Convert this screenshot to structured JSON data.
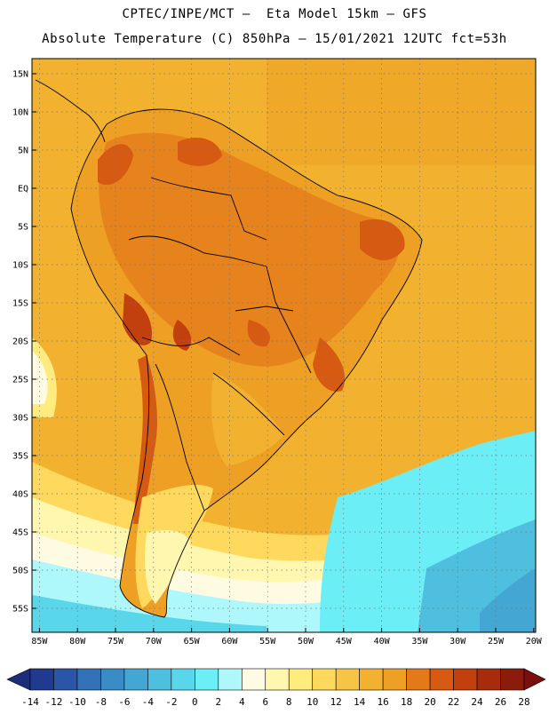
{
  "header": {
    "line1": "CPTEC/INPE/MCT –  Eta Model 15km – GFS",
    "line2": "Absolute Temperature (C) 850hPa – 15/01/2021 12UTC fct=53h"
  },
  "map": {
    "lon_range": [
      -86,
      -20
    ],
    "lat_range": [
      -57,
      17
    ],
    "lon_ticks": [
      "85W",
      "80W",
      "75W",
      "70W",
      "65W",
      "60W",
      "55W",
      "50W",
      "45W",
      "40W",
      "35W",
      "30W",
      "25W",
      "20W"
    ],
    "lat_ticks": [
      "15N",
      "10N",
      "5N",
      "EQ",
      "5S",
      "10S",
      "15S",
      "20S",
      "25S",
      "30S",
      "35S",
      "40S",
      "45S",
      "50S",
      "55S"
    ]
  },
  "colorbar": {
    "labels": [
      "-14",
      "-12",
      "-10",
      "-8",
      "-6",
      "-4",
      "-2",
      "0",
      "2",
      "4",
      "6",
      "8",
      "10",
      "12",
      "14",
      "16",
      "18",
      "20",
      "22",
      "24",
      "26",
      "28"
    ],
    "colors": [
      "#1f3a8f",
      "#2a55a8",
      "#3472b8",
      "#3a8cc6",
      "#44a6d2",
      "#4ebfde",
      "#5ad6ea",
      "#6beef6",
      "#aef8fb",
      "#fffbe3",
      "#fff7b0",
      "#ffec7e",
      "#ffd95e",
      "#f7c545",
      "#f2b22f",
      "#eea024",
      "#e4791a",
      "#d65a12",
      "#c2400e",
      "#a72b0d",
      "#8b1c0c"
    ],
    "under_color": "#1c2d7a",
    "over_color": "#7a0f0b"
  }
}
